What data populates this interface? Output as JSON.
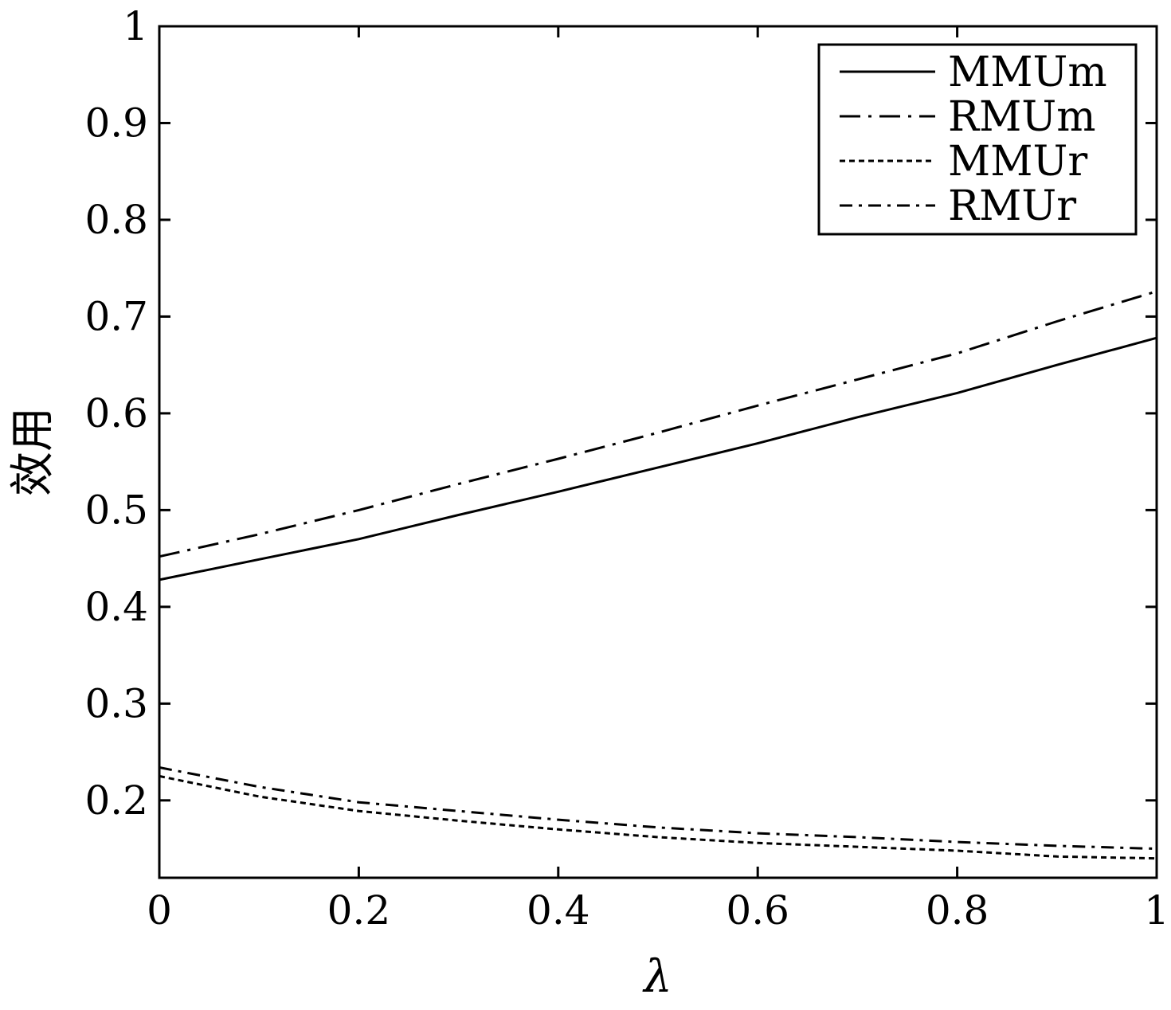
{
  "chart_data": {
    "type": "line",
    "xlabel": "λ",
    "ylabel": "效用",
    "xlim": [
      0,
      1
    ],
    "ylim": [
      0.12,
      1
    ],
    "xticks": [
      0,
      0.2,
      0.4,
      0.6,
      0.8,
      1
    ],
    "xtick_labels": [
      "0",
      "0.2",
      "0.4",
      "0.6",
      "0.8",
      "1"
    ],
    "yticks": [
      0.2,
      0.3,
      0.4,
      0.5,
      0.6,
      0.7,
      0.8,
      0.9,
      1
    ],
    "ytick_labels": [
      "0.2",
      "0.3",
      "0.4",
      "0.5",
      "0.6",
      "0.7",
      "0.8",
      "0.9",
      "1"
    ],
    "grid": false,
    "legend_position": "top-right",
    "x": [
      0,
      0.1,
      0.2,
      0.3,
      0.4,
      0.5,
      0.6,
      0.7,
      0.8,
      0.9,
      1.0
    ],
    "series": [
      {
        "name": "MMUm",
        "style": "solid",
        "values": [
          0.428,
          0.449,
          0.47,
          0.495,
          0.519,
          0.544,
          0.569,
          0.596,
          0.621,
          0.65,
          0.678
        ]
      },
      {
        "name": "RMUm",
        "style": "dashdot-long",
        "values": [
          0.452,
          0.475,
          0.5,
          0.527,
          0.553,
          0.58,
          0.608,
          0.635,
          0.662,
          0.695,
          0.726
        ]
      },
      {
        "name": "MMUr",
        "style": "dotted",
        "values": [
          0.225,
          0.204,
          0.189,
          0.179,
          0.17,
          0.162,
          0.156,
          0.152,
          0.148,
          0.142,
          0.14
        ]
      },
      {
        "name": "RMUr",
        "style": "dashdot",
        "values": [
          0.234,
          0.214,
          0.198,
          0.189,
          0.18,
          0.172,
          0.166,
          0.162,
          0.157,
          0.153,
          0.15
        ]
      }
    ]
  }
}
